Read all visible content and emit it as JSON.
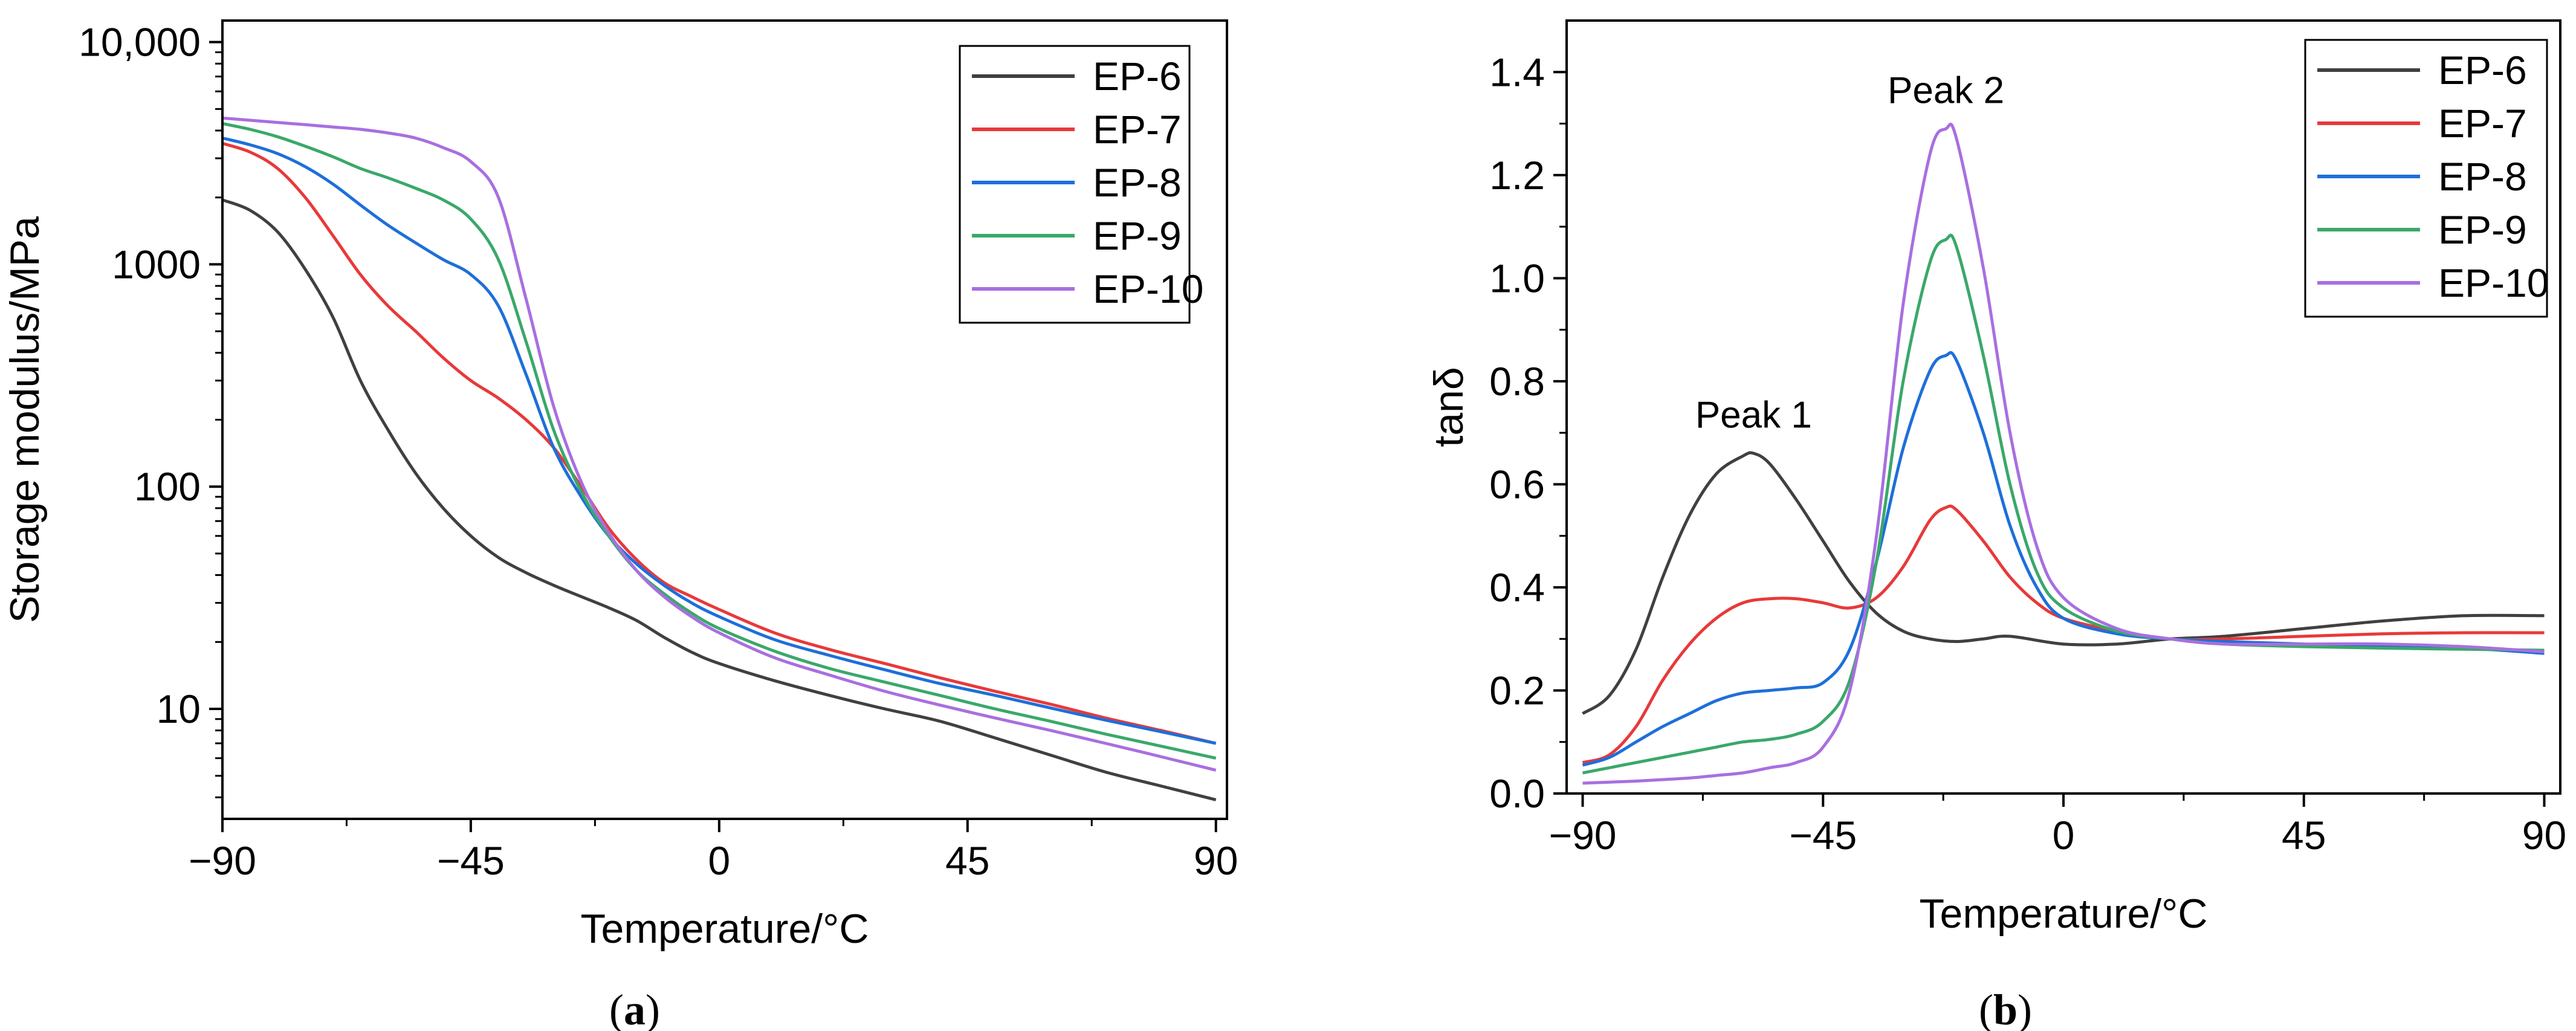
{
  "chart_data": [
    {
      "panel": "a",
      "type": "line",
      "caption_open": "(",
      "caption_letter": "a",
      "caption_close": ")",
      "xlabel": "Temperature/°C",
      "ylabel": "Storage modulus/MPa",
      "xlim": [
        -90,
        92
      ],
      "ylim": [
        3.2,
        12500
      ],
      "yscale": "log",
      "xticks": [
        -90,
        -45,
        0,
        45,
        90
      ],
      "xtick_labels": [
        "−90",
        "−45",
        "0",
        "45",
        "90"
      ],
      "yticks": [
        10,
        100,
        1000,
        10000
      ],
      "ytick_labels": [
        "10",
        "100",
        "1000",
        "10,000"
      ],
      "legend_position": "top-right",
      "series": [
        {
          "name": "EP-6",
          "color": "#404040",
          "x": [
            -90,
            -85,
            -80,
            -75,
            -70,
            -65,
            -60,
            -55,
            -50,
            -45,
            -40,
            -35,
            -30,
            -25,
            -20,
            -15,
            -10,
            -5,
            0,
            10,
            20,
            30,
            40,
            50,
            60,
            70,
            80,
            90
          ],
          "y": [
            1950,
            1750,
            1400,
            950,
            580,
            300,
            180,
            115,
            80,
            60,
            48,
            41,
            36,
            32,
            28.5,
            25,
            21,
            18,
            16,
            13.4,
            11.5,
            10,
            8.8,
            7.4,
            6.2,
            5.2,
            4.5,
            3.9
          ]
        },
        {
          "name": "EP-7",
          "color": "#e8393a",
          "x": [
            -90,
            -85,
            -80,
            -75,
            -70,
            -65,
            -60,
            -55,
            -50,
            -45,
            -40,
            -35,
            -30,
            -25,
            -20,
            -15,
            -10,
            -5,
            0,
            10,
            20,
            30,
            40,
            50,
            60,
            70,
            80,
            90
          ],
          "y": [
            3500,
            3200,
            2700,
            2000,
            1350,
            900,
            650,
            500,
            380,
            300,
            250,
            200,
            150,
            100,
            65,
            47,
            37,
            32,
            28,
            22,
            18.5,
            16,
            13.8,
            12,
            10.5,
            9.1,
            8,
            7
          ]
        },
        {
          "name": "EP-8",
          "color": "#1e6fd9",
          "x": [
            -90,
            -85,
            -80,
            -75,
            -70,
            -65,
            -60,
            -55,
            -50,
            -45,
            -40,
            -35,
            -30,
            -25,
            -20,
            -15,
            -10,
            -5,
            0,
            10,
            20,
            30,
            40,
            50,
            60,
            70,
            80,
            90
          ],
          "y": [
            3700,
            3450,
            3150,
            2750,
            2300,
            1850,
            1500,
            1250,
            1050,
            900,
            650,
            320,
            150,
            90,
            60,
            45,
            36,
            30,
            26,
            20.5,
            17.4,
            15,
            13,
            11.5,
            10.1,
            8.9,
            7.9,
            7
          ]
        },
        {
          "name": "EP-9",
          "color": "#3aa86a",
          "x": [
            -90,
            -85,
            -80,
            -75,
            -70,
            -65,
            -60,
            -55,
            -50,
            -45,
            -40,
            -35,
            -30,
            -25,
            -20,
            -15,
            -10,
            -5,
            0,
            10,
            20,
            30,
            40,
            50,
            60,
            70,
            80,
            90
          ],
          "y": [
            4300,
            4050,
            3750,
            3400,
            3050,
            2700,
            2450,
            2200,
            1950,
            1600,
            1050,
            450,
            180,
            95,
            60,
            42,
            33,
            27,
            23,
            18.2,
            15.2,
            13.2,
            11.5,
            10,
            8.8,
            7.7,
            6.8,
            6
          ]
        },
        {
          "name": "EP-10",
          "color": "#a86fe0",
          "x": [
            -90,
            -85,
            -80,
            -75,
            -70,
            -65,
            -60,
            -55,
            -50,
            -45,
            -40,
            -35,
            -30,
            -25,
            -20,
            -15,
            -10,
            -5,
            0,
            10,
            20,
            30,
            40,
            50,
            60,
            70,
            80,
            90
          ],
          "y": [
            4550,
            4450,
            4350,
            4250,
            4150,
            4050,
            3900,
            3700,
            3350,
            2900,
            2000,
            700,
            230,
            105,
            62,
            42,
            32,
            26,
            22,
            17,
            14.2,
            12,
            10.4,
            9.1,
            8,
            7,
            6.1,
            5.3
          ]
        }
      ]
    },
    {
      "panel": "b",
      "type": "line",
      "caption_open": "(",
      "caption_letter": "b",
      "caption_close": ")",
      "xlabel": "Temperature/°C",
      "ylabel": "tanδ",
      "xlim": [
        -93,
        93
      ],
      "ylim": [
        0,
        1.5
      ],
      "xticks": [
        -90,
        -45,
        0,
        45,
        90
      ],
      "xtick_labels": [
        "−90",
        "−45",
        "0",
        "45",
        "90"
      ],
      "yticks": [
        0.0,
        0.2,
        0.4,
        0.6,
        0.8,
        1.0,
        1.2,
        1.4
      ],
      "ytick_labels": [
        "0.0",
        "0.2",
        "0.4",
        "0.6",
        "0.8",
        "1.0",
        "1.2",
        "1.4"
      ],
      "legend_position": "top-right",
      "annotations": [
        {
          "text": "Peak 1",
          "x": -58,
          "y": 0.71
        },
        {
          "text": "Peak 2",
          "x": -22,
          "y": 1.34
        }
      ],
      "series": [
        {
          "name": "EP-6",
          "color": "#404040",
          "x": [
            -90,
            -85,
            -80,
            -75,
            -70,
            -65,
            -60,
            -58,
            -55,
            -50,
            -45,
            -40,
            -35,
            -30,
            -25,
            -20,
            -15,
            -10,
            0,
            10,
            20,
            30,
            45,
            60,
            75,
            90
          ],
          "y": [
            0.155,
            0.19,
            0.28,
            0.42,
            0.54,
            0.62,
            0.655,
            0.66,
            0.64,
            0.57,
            0.49,
            0.41,
            0.35,
            0.315,
            0.3,
            0.295,
            0.3,
            0.305,
            0.29,
            0.29,
            0.3,
            0.305,
            0.32,
            0.335,
            0.345,
            0.345
          ]
        },
        {
          "name": "EP-7",
          "color": "#e8393a",
          "x": [
            -90,
            -85,
            -80,
            -75,
            -70,
            -65,
            -60,
            -55,
            -50,
            -45,
            -40,
            -35,
            -30,
            -25,
            -22,
            -20,
            -15,
            -10,
            -5,
            0,
            10,
            20,
            30,
            45,
            60,
            75,
            90
          ],
          "y": [
            0.06,
            0.075,
            0.13,
            0.22,
            0.29,
            0.34,
            0.37,
            0.378,
            0.378,
            0.37,
            0.36,
            0.38,
            0.44,
            0.53,
            0.555,
            0.55,
            0.49,
            0.42,
            0.37,
            0.34,
            0.315,
            0.3,
            0.3,
            0.305,
            0.31,
            0.312,
            0.312
          ]
        },
        {
          "name": "EP-8",
          "color": "#1e6fd9",
          "x": [
            -90,
            -85,
            -80,
            -75,
            -70,
            -65,
            -60,
            -55,
            -50,
            -45,
            -40,
            -35,
            -30,
            -25,
            -22,
            -20,
            -15,
            -10,
            -5,
            0,
            10,
            20,
            30,
            45,
            60,
            75,
            90
          ],
          "y": [
            0.055,
            0.07,
            0.1,
            0.13,
            0.155,
            0.18,
            0.195,
            0.2,
            0.205,
            0.215,
            0.28,
            0.45,
            0.67,
            0.82,
            0.85,
            0.84,
            0.7,
            0.52,
            0.4,
            0.34,
            0.31,
            0.3,
            0.295,
            0.29,
            0.285,
            0.282,
            0.272
          ]
        },
        {
          "name": "EP-9",
          "color": "#3aa86a",
          "x": [
            -90,
            -85,
            -80,
            -75,
            -70,
            -65,
            -60,
            -55,
            -50,
            -45,
            -40,
            -35,
            -30,
            -25,
            -22,
            -20,
            -15,
            -10,
            -5,
            0,
            10,
            20,
            30,
            45,
            60,
            75,
            90
          ],
          "y": [
            0.04,
            0.05,
            0.06,
            0.07,
            0.08,
            0.09,
            0.1,
            0.105,
            0.115,
            0.14,
            0.22,
            0.45,
            0.8,
            1.03,
            1.075,
            1.06,
            0.85,
            0.6,
            0.43,
            0.36,
            0.315,
            0.3,
            0.29,
            0.285,
            0.282,
            0.28,
            0.278
          ]
        },
        {
          "name": "EP-10",
          "color": "#a86fe0",
          "x": [
            -90,
            -85,
            -80,
            -75,
            -70,
            -65,
            -60,
            -55,
            -50,
            -45,
            -40,
            -35,
            -30,
            -25,
            -22,
            -20,
            -15,
            -10,
            -5,
            0,
            10,
            20,
            30,
            45,
            60,
            75,
            90
          ],
          "y": [
            0.02,
            0.022,
            0.024,
            0.027,
            0.03,
            0.035,
            0.04,
            0.05,
            0.06,
            0.09,
            0.2,
            0.5,
            0.95,
            1.24,
            1.29,
            1.27,
            1.02,
            0.7,
            0.48,
            0.38,
            0.32,
            0.3,
            0.29,
            0.29,
            0.29,
            0.285,
            0.275
          ]
        }
      ]
    }
  ]
}
